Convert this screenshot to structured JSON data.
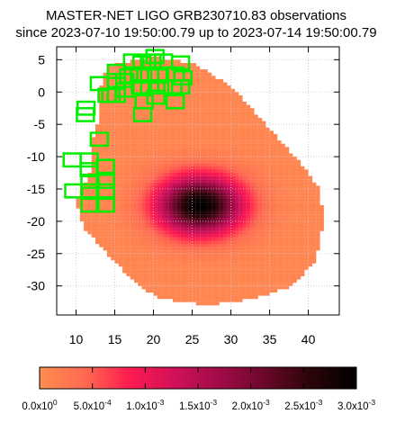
{
  "chart_data": {
    "type": "heatmap",
    "title_line1": "MASTER-NET LIGO GRB230710.83 observations",
    "title_line2": "since 2023-07-10 19:50:00.79 up to 2023-07-14 19:50:00.79",
    "xlim": [
      7.5,
      44
    ],
    "ylim": [
      -34.5,
      7
    ],
    "x_ticks": [
      "10",
      "15",
      "20",
      "25",
      "30",
      "35",
      "40"
    ],
    "y_ticks": [
      "5",
      "0",
      "-5",
      "-10",
      "-15",
      "-20",
      "-25",
      "-30"
    ],
    "grid": true,
    "colorbar": {
      "range": [
        0,
        0.003
      ],
      "tick_labels": [
        {
          "mant": "0.0x10",
          "exp": "0"
        },
        {
          "mant": "5.0x10",
          "exp": "-4"
        },
        {
          "mant": "1.0x10",
          "exp": "-3"
        },
        {
          "mant": "1.5x10",
          "exp": "-3"
        },
        {
          "mant": "2.0x10",
          "exp": "-3"
        },
        {
          "mant": "2.5x10",
          "exp": "-3"
        },
        {
          "mant": "3.0x10",
          "exp": "-3"
        }
      ],
      "colors": [
        "#ff8c50",
        "#ff6a50",
        "#ff1a50",
        "#d0105a",
        "#a00a48",
        "#6a0828",
        "#2a0408",
        "#000000"
      ]
    },
    "probability_region": {
      "outline_deg": [
        [
          13,
          0
        ],
        [
          14,
          4
        ],
        [
          20,
          5.5
        ],
        [
          25,
          4.5
        ],
        [
          30,
          1
        ],
        [
          33,
          -3
        ],
        [
          36,
          -7
        ],
        [
          39,
          -11
        ],
        [
          41.5,
          -15
        ],
        [
          42,
          -20
        ],
        [
          41,
          -26
        ],
        [
          38,
          -30
        ],
        [
          33,
          -32
        ],
        [
          27,
          -33
        ],
        [
          21,
          -32
        ],
        [
          18,
          -30
        ],
        [
          14,
          -25
        ],
        [
          11,
          -21
        ],
        [
          10,
          -17
        ],
        [
          12,
          -12
        ],
        [
          12,
          -8
        ],
        [
          13,
          -4
        ]
      ],
      "base_value": 8e-05,
      "peak_center": [
        26,
        -17.5
      ],
      "peak_value": 0.003
    },
    "observation_fields": [
      [
        15.2,
        3.2
      ],
      [
        16.8,
        2.5
      ],
      [
        17.3,
        4.8
      ],
      [
        18.5,
        4.5
      ],
      [
        19.8,
        4.8
      ],
      [
        20.2,
        5.5
      ],
      [
        21.3,
        4.8
      ],
      [
        23.5,
        4.5
      ],
      [
        15.2,
        1.8
      ],
      [
        16.3,
        1.8
      ],
      [
        18.2,
        2.5
      ],
      [
        19.5,
        2.5
      ],
      [
        20.8,
        2.5
      ],
      [
        22.8,
        2.8
      ],
      [
        23.8,
        2.2
      ],
      [
        13.0,
        1.3
      ],
      [
        16.3,
        0.3
      ],
      [
        18.3,
        0.8
      ],
      [
        19.5,
        0.8
      ],
      [
        20.8,
        0.8
      ],
      [
        22.5,
        0.8
      ],
      [
        23.5,
        0.8
      ],
      [
        14.0,
        -0.5
      ],
      [
        15.2,
        -0.5
      ],
      [
        14.5,
        -0.5
      ],
      [
        18.8,
        -1.5
      ],
      [
        20.3,
        -0.8
      ],
      [
        22.8,
        -1.5
      ],
      [
        11.3,
        -2.5
      ],
      [
        11.2,
        -3.5
      ],
      [
        18.6,
        -3.5
      ],
      [
        13.0,
        -7.3
      ],
      [
        9.5,
        -10.5
      ],
      [
        11.7,
        -10.5
      ],
      [
        11.7,
        -12.0
      ],
      [
        13.8,
        -11.5
      ],
      [
        9.7,
        -15.3
      ],
      [
        11.8,
        -13.8
      ],
      [
        13.8,
        -13.8
      ],
      [
        11.8,
        -15.3
      ],
      [
        13.8,
        -15.3
      ],
      [
        11.8,
        -17.5
      ],
      [
        13.8,
        -17.5
      ]
    ],
    "field_size_deg": [
      2.2,
      2.0
    ],
    "field_color": "#00ee00"
  }
}
